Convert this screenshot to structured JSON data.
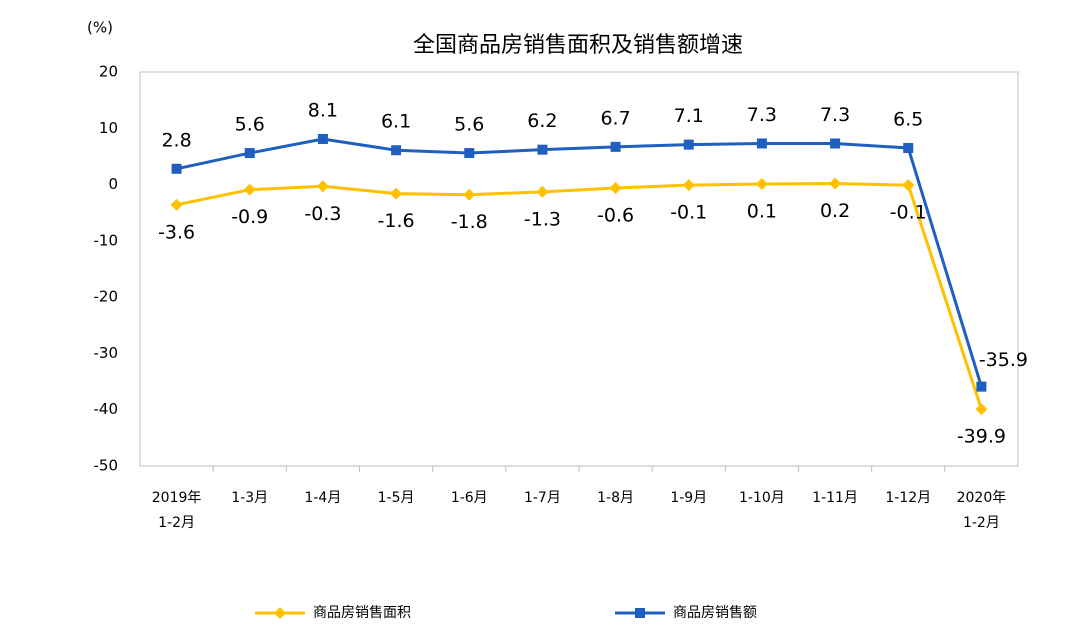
{
  "chart_data": {
    "type": "line",
    "title": "全国商品房销售面积及销售额增速",
    "y_unit_label": "(%)",
    "categories": [
      "2019年\n1-2月",
      "1-3月",
      "1-4月",
      "1-5月",
      "1-6月",
      "1-7月",
      "1-8月",
      "1-9月",
      "1-10月",
      "1-11月",
      "1-12月",
      "2020年\n1-2月"
    ],
    "series": [
      {
        "name": "商品房销售面积",
        "color": "#FFC000",
        "marker": "diamond",
        "values": [
          -3.6,
          -0.9,
          -0.3,
          -1.6,
          -1.8,
          -1.3,
          -0.6,
          -0.1,
          0.1,
          0.2,
          -0.1,
          -39.9
        ]
      },
      {
        "name": "商品房销售额",
        "color": "#1F5FBF",
        "marker": "square",
        "values": [
          2.8,
          5.6,
          8.1,
          6.1,
          5.6,
          6.2,
          6.7,
          7.1,
          7.3,
          7.3,
          6.5,
          -35.9
        ]
      }
    ],
    "ylim": [
      -50,
      20
    ],
    "yticks": [
      -50,
      -40,
      -30,
      -20,
      -10,
      0,
      10,
      20
    ],
    "grid": false,
    "legend": "bottom"
  }
}
